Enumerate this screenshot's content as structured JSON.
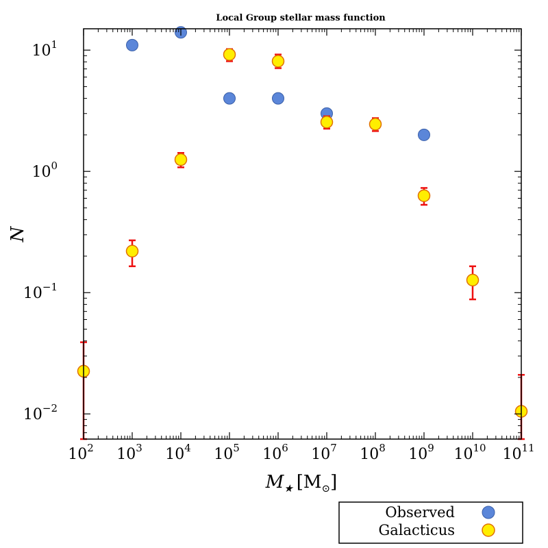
{
  "chart_data": {
    "type": "scatter",
    "title": "Local Group stellar mass function",
    "xlabel": "M★ [M⊙]",
    "xlabel_parts": {
      "symbol": "M",
      "subscript": "★",
      "unit": "[M",
      "unit_sub": "⊙",
      "unit_close": "]"
    },
    "ylabel": "N",
    "xscale": "log",
    "yscale": "log",
    "xlim": [
      100,
      100000000000
    ],
    "ylim": [
      0.0062,
      15
    ],
    "x_ticks": [
      {
        "value": 100,
        "base": "10",
        "exp": "2"
      },
      {
        "value": 1000,
        "base": "10",
        "exp": "3"
      },
      {
        "value": 10000,
        "base": "10",
        "exp": "4"
      },
      {
        "value": 100000,
        "base": "10",
        "exp": "5"
      },
      {
        "value": 1000000,
        "base": "10",
        "exp": "6"
      },
      {
        "value": 10000000,
        "base": "10",
        "exp": "7"
      },
      {
        "value": 100000000,
        "base": "10",
        "exp": "8"
      },
      {
        "value": 1000000000,
        "base": "10",
        "exp": "9"
      },
      {
        "value": 10000000000,
        "base": "10",
        "exp": "10"
      },
      {
        "value": 100000000000,
        "base": "10",
        "exp": "11"
      }
    ],
    "y_ticks": [
      {
        "value": 0.01,
        "base": "10",
        "exp": "−2"
      },
      {
        "value": 0.1,
        "base": "10",
        "exp": "−1"
      },
      {
        "value": 1,
        "base": "10",
        "exp": "0"
      },
      {
        "value": 10,
        "base": "10",
        "exp": "1"
      }
    ],
    "grid": false,
    "legend_position": "below-right",
    "series": [
      {
        "name": "Observed",
        "color": "#5b86d9",
        "edge": "#3a5fa8",
        "points": [
          {
            "x": 1000,
            "y": 11
          },
          {
            "x": 10000,
            "y": 14
          },
          {
            "x": 100000,
            "y": 4
          },
          {
            "x": 1000000,
            "y": 4
          },
          {
            "x": 10000000,
            "y": 3
          },
          {
            "x": 1000000000,
            "y": 2
          }
        ]
      },
      {
        "name": "Galacticus",
        "color": "#ffee00",
        "edge": "#e07000",
        "errcolor": "#ee1111",
        "points": [
          {
            "x": 100,
            "y": 0.0225,
            "ylo": 0.0062,
            "yhi": 0.039
          },
          {
            "x": 1000,
            "y": 0.22,
            "ylo": 0.165,
            "yhi": 0.27
          },
          {
            "x": 10000,
            "y": 1.25,
            "ylo": 1.08,
            "yhi": 1.42
          },
          {
            "x": 100000,
            "y": 9.2,
            "ylo": 8.1,
            "yhi": 10.2
          },
          {
            "x": 1000000,
            "y": 8.1,
            "ylo": 7.1,
            "yhi": 9.2
          },
          {
            "x": 10000000,
            "y": 2.55,
            "ylo": 2.25,
            "yhi": 2.85
          },
          {
            "x": 100000000,
            "y": 2.45,
            "ylo": 2.15,
            "yhi": 2.75
          },
          {
            "x": 1000000000,
            "y": 0.63,
            "ylo": 0.53,
            "yhi": 0.73
          },
          {
            "x": 10000000000,
            "y": 0.127,
            "ylo": 0.088,
            "yhi": 0.165
          },
          {
            "x": 100000000000,
            "y": 0.0105,
            "ylo": 0.0062,
            "yhi": 0.021
          }
        ]
      }
    ]
  }
}
